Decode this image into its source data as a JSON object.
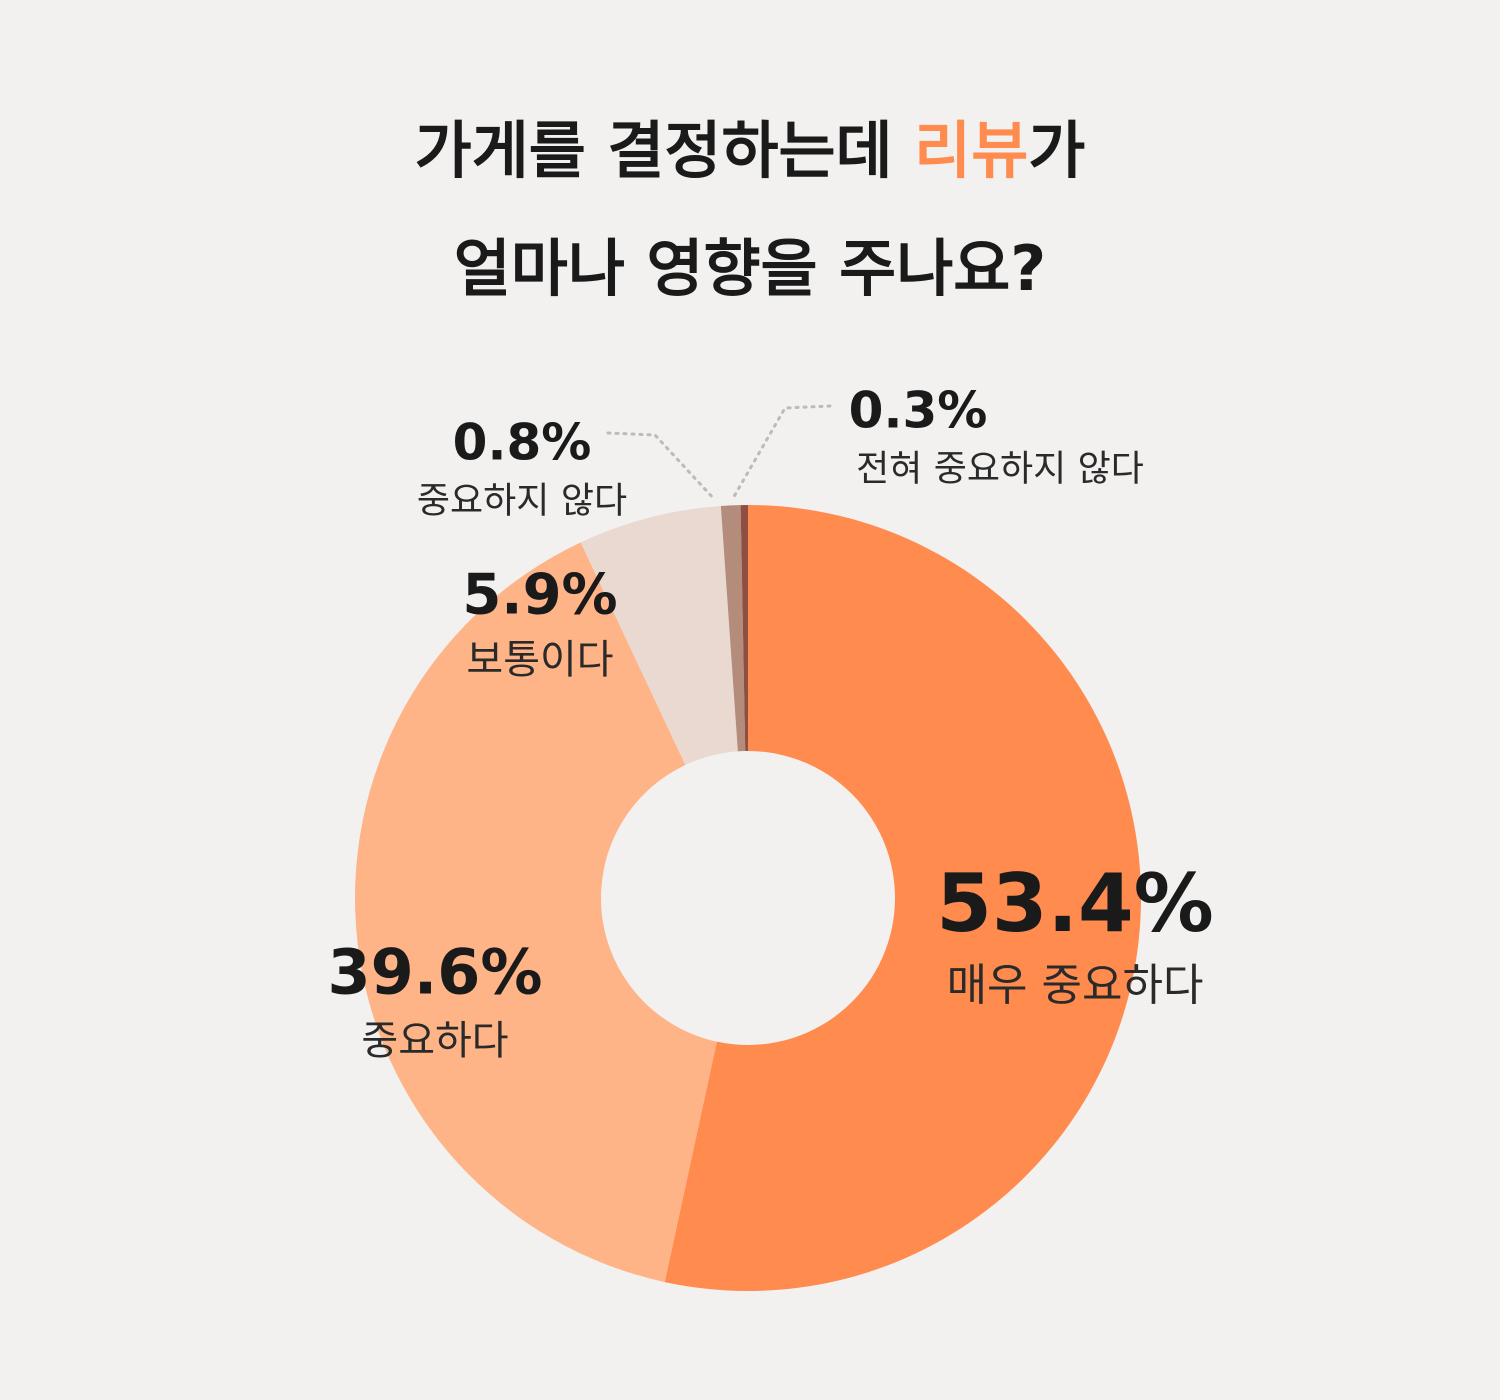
{
  "chart_data": {
    "type": "pie",
    "title": {
      "line1_before": "가게를 결정하는데 ",
      "highlight": "리뷰",
      "line1_after": "가",
      "line2": "얼마나 영향을 주나요?"
    },
    "categories": [
      "매우 중요하다",
      "중요하다",
      "보통이다",
      "중요하지 않다",
      "전혀 중요하지 않다"
    ],
    "values": [
      53.4,
      39.6,
      5.9,
      0.8,
      0.3
    ],
    "value_labels": [
      "53.4%",
      "39.6%",
      "5.9%",
      "0.8%",
      "0.3%"
    ],
    "colors": [
      "#ff8b4f",
      "#ffb488",
      "#ead9d1",
      "#b38c7c",
      "#8f4f40"
    ],
    "highlight_color": "#ff8b4f"
  }
}
